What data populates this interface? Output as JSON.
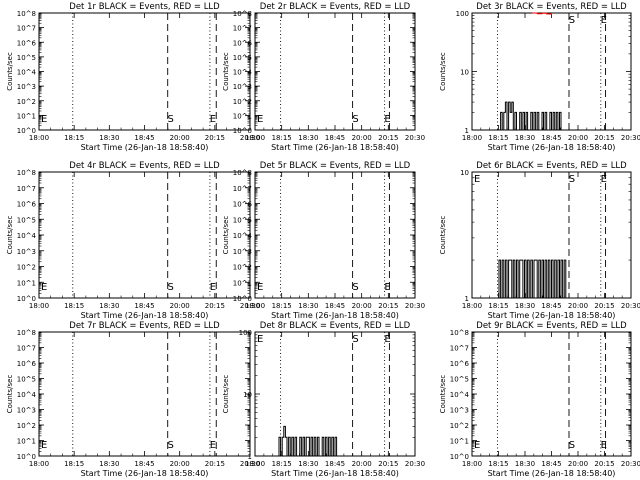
{
  "chart_data": [
    {
      "title": "Det 1r BLACK = Events, RED = LLD",
      "type": "line",
      "yscale": "log",
      "ylim": [
        1,
        100000000
      ],
      "ylabel": "Counts/sec",
      "xlabel": "Start Time (26-Jan-18 18:58:40)",
      "x_ticks": [
        "18:00",
        "18:15",
        "18:30",
        "18:45",
        "20:00",
        "20:15",
        "20:30"
      ],
      "y_ticks": [
        "10^0",
        "10^1",
        "10^2",
        "10^3",
        "10^4",
        "10^5",
        "10^6",
        "10^7",
        "10^8"
      ],
      "vlines": [
        {
          "x": 0.16,
          "style": "dotted"
        },
        {
          "x": 0.61,
          "style": "dashed",
          "label": "S"
        },
        {
          "x": 0.81,
          "style": "dotted",
          "label": "E"
        },
        {
          "x": 0.84,
          "style": "dashed"
        }
      ],
      "e_left": true,
      "series": []
    },
    {
      "title": "Det 2r BLACK = Events, RED = LLD",
      "type": "line",
      "yscale": "log",
      "ylim": [
        1,
        100000000
      ],
      "ylabel": "Counts/sec",
      "xlabel": "Start Time (26-Jan-18 18:58:40)",
      "x_ticks": [
        "18:00",
        "18:15",
        "18:30",
        "18:45",
        "20:00",
        "20:15",
        "20:30"
      ],
      "y_ticks": [
        "10^0",
        "10^1",
        "10^2",
        "10^3",
        "10^4",
        "10^5",
        "10^6",
        "10^7",
        "10^8"
      ],
      "vlines": [
        {
          "x": 0.16,
          "style": "dotted"
        },
        {
          "x": 0.61,
          "style": "dashed",
          "label": "S"
        },
        {
          "x": 0.81,
          "style": "dotted",
          "label": "E"
        },
        {
          "x": 0.84,
          "style": "dashed"
        }
      ],
      "e_left": true,
      "series": []
    },
    {
      "title": "Det 3r BLACK = Events, RED = LLD",
      "type": "line",
      "yscale": "log",
      "ylim": [
        1,
        100
      ],
      "ylabel": "Counts/sec",
      "xlabel": "Start Time (26-Jan-18 18:58:40)",
      "x_ticks": [
        "18:00",
        "18:15",
        "18:30",
        "18:45",
        "20:00",
        "20:15",
        "20:30"
      ],
      "y_ticks": [
        "1",
        "10",
        "100"
      ],
      "vlines": [
        {
          "x": 0.16,
          "style": "dotted"
        },
        {
          "x": 0.61,
          "style": "dashed",
          "label": "S"
        },
        {
          "x": 0.81,
          "style": "dotted",
          "label": "E"
        },
        {
          "x": 0.84,
          "style": "dashed"
        }
      ],
      "e_left": false,
      "series": [
        {
          "name": "Events",
          "color": "#000000",
          "x": [
            0.0,
            0.17,
            0.18,
            0.19,
            0.2,
            0.21,
            0.22,
            0.23,
            0.24,
            0.25,
            0.26,
            0.27,
            0.28,
            0.29,
            0.3,
            0.31,
            0.32,
            0.33,
            0.34,
            0.35,
            0.36,
            0.37,
            0.38,
            0.39,
            0.4,
            0.41,
            0.42,
            0.43,
            0.44,
            0.45,
            0.46,
            0.47,
            0.48,
            0.49,
            0.5,
            0.51,
            0.52,
            0.53,
            0.54,
            0.55,
            0.56,
            0.57,
            1.0
          ],
          "y": [
            1,
            1,
            2,
            1,
            2,
            3,
            1,
            3,
            2,
            3,
            1,
            2,
            1,
            1,
            2,
            1,
            2,
            1,
            2,
            1,
            1,
            2,
            1,
            2,
            1,
            2,
            1,
            1,
            2,
            1,
            2,
            1,
            1,
            2,
            1,
            2,
            1,
            2,
            1,
            2,
            1,
            1,
            1
          ]
        },
        {
          "name": "LLD",
          "color": "#ff0000",
          "x": [
            0.38,
            0.41,
            0.44,
            0.47,
            0.5
          ],
          "y": [
            100,
            97,
            99,
            96,
            100
          ]
        }
      ]
    },
    {
      "title": "Det 4r BLACK = Events, RED = LLD",
      "type": "line",
      "yscale": "log",
      "ylim": [
        1,
        100000000
      ],
      "ylabel": "Counts/sec",
      "xlabel": "Start Time (26-Jan-18 18:58:40)",
      "x_ticks": [
        "18:00",
        "18:15",
        "18:30",
        "18:45",
        "20:00",
        "20:15",
        "20:30"
      ],
      "y_ticks": [
        "10^0",
        "10^1",
        "10^2",
        "10^3",
        "10^4",
        "10^5",
        "10^6",
        "10^7",
        "10^8"
      ],
      "vlines": [
        {
          "x": 0.16,
          "style": "dotted"
        },
        {
          "x": 0.61,
          "style": "dashed",
          "label": "S"
        },
        {
          "x": 0.81,
          "style": "dotted",
          "label": "E"
        },
        {
          "x": 0.84,
          "style": "dashed"
        }
      ],
      "e_left": true,
      "series": []
    },
    {
      "title": "Det 5r BLACK = Events, RED = LLD",
      "type": "line",
      "yscale": "log",
      "ylim": [
        1,
        100000000
      ],
      "ylabel": "Counts/sec",
      "xlabel": "Start Time (26-Jan-18 18:58:40)",
      "x_ticks": [
        "18:00",
        "18:15",
        "18:30",
        "18:45",
        "20:00",
        "20:15",
        "20:30"
      ],
      "y_ticks": [
        "10^0",
        "10^1",
        "10^2",
        "10^3",
        "10^4",
        "10^5",
        "10^6",
        "10^7",
        "10^8"
      ],
      "vlines": [
        {
          "x": 0.16,
          "style": "dotted"
        },
        {
          "x": 0.61,
          "style": "dashed",
          "label": "S"
        },
        {
          "x": 0.81,
          "style": "dotted",
          "label": "E"
        },
        {
          "x": 0.84,
          "style": "dashed"
        }
      ],
      "e_left": true,
      "series": []
    },
    {
      "title": "Det 6r BLACK = Events, RED = LLD",
      "type": "line",
      "yscale": "log",
      "ylim": [
        1,
        10
      ],
      "ylabel": "Counts/sec",
      "xlabel": "Start Time (26-Jan-18 18:58:40)",
      "x_ticks": [
        "18:00",
        "18:15",
        "18:30",
        "18:45",
        "20:00",
        "20:15",
        "20:30"
      ],
      "y_ticks": [
        "1",
        "10"
      ],
      "vlines": [
        {
          "x": 0.16,
          "style": "dotted"
        },
        {
          "x": 0.61,
          "style": "dashed",
          "label": "S"
        },
        {
          "x": 0.81,
          "style": "dotted",
          "label": "E"
        },
        {
          "x": 0.84,
          "style": "dashed"
        }
      ],
      "e_left": true,
      "series": [
        {
          "name": "Events",
          "color": "#000000",
          "x": [
            0.0,
            0.16,
            0.17,
            0.18,
            0.19,
            0.2,
            0.21,
            0.22,
            0.23,
            0.24,
            0.25,
            0.26,
            0.27,
            0.28,
            0.29,
            0.3,
            0.31,
            0.32,
            0.33,
            0.34,
            0.35,
            0.36,
            0.37,
            0.38,
            0.39,
            0.4,
            0.41,
            0.42,
            0.43,
            0.44,
            0.45,
            0.46,
            0.47,
            0.48,
            0.49,
            0.5,
            0.51,
            0.52,
            0.53,
            0.54,
            0.55,
            0.56,
            0.57,
            0.58,
            0.59,
            0.6,
            1.0
          ],
          "y": [
            1,
            1,
            2,
            1,
            2,
            1,
            2,
            1,
            2,
            2,
            1,
            2,
            1,
            2,
            1,
            2,
            2,
            1,
            2,
            1,
            2,
            1,
            2,
            1,
            2,
            2,
            1,
            2,
            1,
            2,
            1,
            2,
            1,
            2,
            1,
            2,
            1,
            2,
            1,
            2,
            1,
            2,
            1,
            2,
            1,
            1,
            1
          ]
        }
      ]
    },
    {
      "title": "Det 7r BLACK = Events, RED = LLD",
      "type": "line",
      "yscale": "log",
      "ylim": [
        1,
        100000000
      ],
      "ylabel": "Counts/sec",
      "xlabel": "Start Time (26-Jan-18 18:58:40)",
      "x_ticks": [
        "18:00",
        "18:15",
        "18:30",
        "18:45",
        "20:00",
        "20:15",
        "20:30"
      ],
      "y_ticks": [
        "10^0",
        "10^1",
        "10^2",
        "10^3",
        "10^4",
        "10^5",
        "10^6",
        "10^7",
        "10^8"
      ],
      "vlines": [
        {
          "x": 0.16,
          "style": "dotted"
        },
        {
          "x": 0.61,
          "style": "dashed",
          "label": "S"
        },
        {
          "x": 0.81,
          "style": "dotted",
          "label": "E"
        },
        {
          "x": 0.84,
          "style": "dashed"
        }
      ],
      "e_left": true,
      "series": []
    },
    {
      "title": "Det 8r BLACK = Events, RED = LLD",
      "type": "line",
      "yscale": "log",
      "ylim": [
        1,
        100
      ],
      "ylabel": "Counts/sec",
      "xlabel": "Start Time (26-Jan-18 18:58:40)",
      "x_ticks": [
        "18:00",
        "18:15",
        "18:30",
        "18:45",
        "20:00",
        "20:15",
        "20:30"
      ],
      "y_ticks": [
        "1",
        "10",
        "100"
      ],
      "vlines": [
        {
          "x": 0.16,
          "style": "dotted"
        },
        {
          "x": 0.61,
          "style": "dashed",
          "label": "S"
        },
        {
          "x": 0.81,
          "style": "dotted",
          "label": "E"
        },
        {
          "x": 0.84,
          "style": "dashed"
        }
      ],
      "e_left": true,
      "series": [
        {
          "name": "Events",
          "color": "#000000",
          "x": [
            0.0,
            0.14,
            0.15,
            0.16,
            0.17,
            0.18,
            0.19,
            0.2,
            0.21,
            0.22,
            0.23,
            0.24,
            0.25,
            0.26,
            0.27,
            0.28,
            0.29,
            0.3,
            0.31,
            0.32,
            0.33,
            0.34,
            0.35,
            0.36,
            0.37,
            0.38,
            0.39,
            0.4,
            0.41,
            0.42,
            0.43,
            0.44,
            0.45,
            0.46,
            0.47,
            0.48,
            0.49,
            0.5,
            0.51,
            0.52,
            1.0
          ],
          "y": [
            1,
            1,
            2,
            1,
            2,
            3,
            2,
            1,
            2,
            1,
            2,
            1,
            2,
            1,
            1,
            2,
            1,
            2,
            1,
            2,
            2,
            1,
            2,
            1,
            2,
            1,
            2,
            1,
            1,
            2,
            1,
            2,
            1,
            2,
            1,
            2,
            1,
            2,
            1,
            1,
            1
          ]
        }
      ]
    },
    {
      "title": "Det 9r BLACK = Events, RED = LLD",
      "type": "line",
      "yscale": "log",
      "ylim": [
        1,
        100000000
      ],
      "ylabel": "Counts/sec",
      "xlabel": "Start Time (26-Jan-18 18:58:40)",
      "x_ticks": [
        "18:00",
        "18:15",
        "18:30",
        "18:45",
        "20:00",
        "20:15",
        "20:30"
      ],
      "y_ticks": [
        "10^0",
        "10^1",
        "10^2",
        "10^3",
        "10^4",
        "10^5",
        "10^6",
        "10^7",
        "10^8"
      ],
      "vlines": [
        {
          "x": 0.16,
          "style": "dotted"
        },
        {
          "x": 0.61,
          "style": "dashed",
          "label": "S"
        },
        {
          "x": 0.81,
          "style": "dotted",
          "label": "E"
        },
        {
          "x": 0.84,
          "style": "dashed"
        }
      ],
      "e_left": true,
      "series": []
    }
  ]
}
